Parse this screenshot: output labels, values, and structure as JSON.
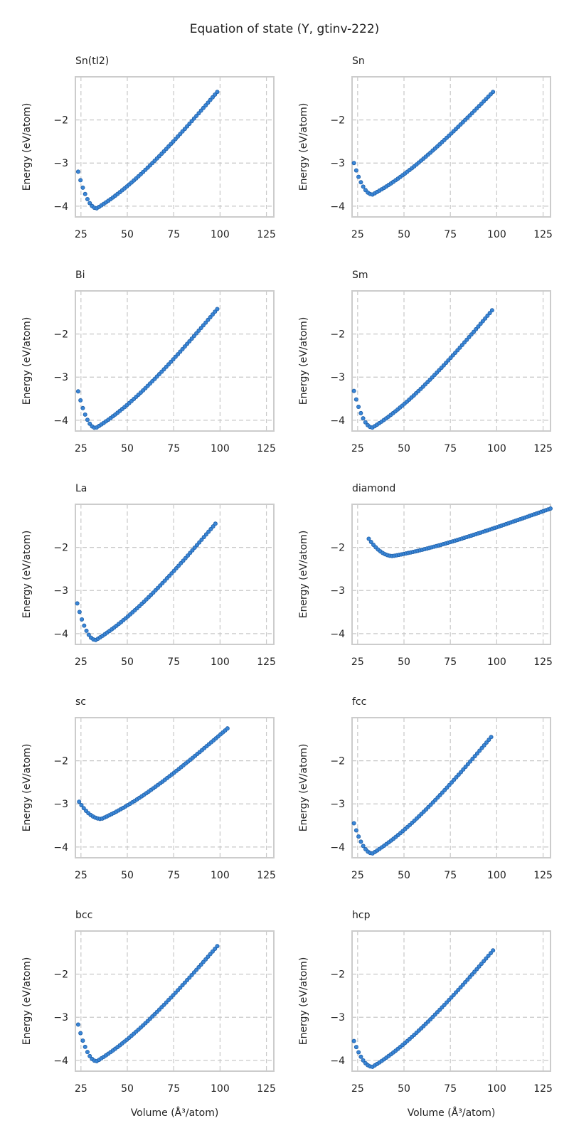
{
  "figure": {
    "title": "Equation of state (Y, gtinv-222)",
    "xlabel": "Volume (Å³/atom)",
    "ylabel": "Energy (eV/atom)"
  },
  "colors": {
    "point_fill": "#3a86d6",
    "point_edge": "#1f5fa8"
  },
  "chart_data": [
    {
      "type": "scatter",
      "title": "Sn(tI2)",
      "xlabel": "",
      "ylabel": "Energy (eV/atom)",
      "xlim": [
        22,
        129
      ],
      "ylim": [
        -4.25,
        -1.0
      ],
      "xticks": [
        25,
        50,
        75,
        100,
        125
      ],
      "yticks": [
        -4,
        -3,
        -2
      ],
      "grid": true,
      "curve": {
        "vmin": 23.5,
        "vmax": 98.5,
        "v0": 33.5,
        "emin": -4.05,
        "eend": -1.35
      }
    },
    {
      "type": "scatter",
      "title": "Sn",
      "xlabel": "",
      "ylabel": "Energy (eV/atom)",
      "xlim": [
        22,
        129
      ],
      "ylim": [
        -4.25,
        -1.0
      ],
      "xticks": [
        25,
        50,
        75,
        100,
        125
      ],
      "yticks": [
        -4,
        -3,
        -2
      ],
      "grid": true,
      "curve": {
        "vmin": 23.0,
        "vmax": 98.0,
        "v0": 33.0,
        "emin": -3.73,
        "eend": -1.35,
        "estart": -3.0
      }
    },
    {
      "type": "scatter",
      "title": "Bi",
      "xlabel": "",
      "ylabel": "Energy (eV/atom)",
      "xlim": [
        22,
        129
      ],
      "ylim": [
        -4.25,
        -1.0
      ],
      "xticks": [
        25,
        50,
        75,
        100,
        125
      ],
      "yticks": [
        -4,
        -3,
        -2
      ],
      "grid": true,
      "curve": {
        "vmin": 23.5,
        "vmax": 98.5,
        "v0": 33.0,
        "emin": -4.18,
        "eend": -1.42
      }
    },
    {
      "type": "scatter",
      "title": "Sm",
      "xlabel": "",
      "ylabel": "Energy (eV/atom)",
      "xlim": [
        22,
        129
      ],
      "ylim": [
        -4.25,
        -1.0
      ],
      "xticks": [
        25,
        50,
        75,
        100,
        125
      ],
      "yticks": [
        -4,
        -3,
        -2
      ],
      "grid": true,
      "curve": {
        "vmin": 23.0,
        "vmax": 97.5,
        "v0": 33.0,
        "emin": -4.17,
        "eend": -1.45
      }
    },
    {
      "type": "scatter",
      "title": "La",
      "xlabel": "",
      "ylabel": "Energy (eV/atom)",
      "xlim": [
        22,
        129
      ],
      "ylim": [
        -4.25,
        -1.0
      ],
      "xticks": [
        25,
        50,
        75,
        100,
        125
      ],
      "yticks": [
        -4,
        -3,
        -2
      ],
      "grid": true,
      "curve": {
        "vmin": 23.0,
        "vmax": 97.5,
        "v0": 33.0,
        "emin": -4.15,
        "eend": -1.45
      }
    },
    {
      "type": "scatter",
      "title": "diamond",
      "xlabel": "",
      "ylabel": "Energy (eV/atom)",
      "xlim": [
        22,
        129
      ],
      "ylim": [
        -4.25,
        -1.0
      ],
      "xticks": [
        25,
        50,
        75,
        100,
        125
      ],
      "yticks": [
        -4,
        -3,
        -2
      ],
      "grid": true,
      "curve": {
        "vmin": 31.0,
        "vmax": 129.0,
        "v0": 44.0,
        "emin": -2.2,
        "eend": -1.1,
        "estart": -1.8
      }
    },
    {
      "type": "scatter",
      "title": "sc",
      "xlabel": "",
      "ylabel": "Energy (eV/atom)",
      "xlim": [
        22,
        129
      ],
      "ylim": [
        -4.25,
        -1.0
      ],
      "xticks": [
        25,
        50,
        75,
        100,
        125
      ],
      "yticks": [
        -4,
        -3,
        -2
      ],
      "grid": true,
      "curve": {
        "vmin": 24.0,
        "vmax": 104.0,
        "v0": 36.0,
        "emin": -3.35,
        "eend": -1.25,
        "estart": -2.95
      }
    },
    {
      "type": "scatter",
      "title": "fcc",
      "xlabel": "",
      "ylabel": "Energy (eV/atom)",
      "xlim": [
        22,
        129
      ],
      "ylim": [
        -4.25,
        -1.0
      ],
      "xticks": [
        25,
        50,
        75,
        100,
        125
      ],
      "yticks": [
        -4,
        -3,
        -2
      ],
      "grid": true,
      "curve": {
        "vmin": 23.0,
        "vmax": 97.0,
        "v0": 33.0,
        "emin": -4.15,
        "eend": -1.45,
        "estart": -3.45
      }
    },
    {
      "type": "scatter",
      "title": "bcc",
      "xlabel": "Volume (Å³/atom)",
      "ylabel": "Energy (eV/atom)",
      "xlim": [
        22,
        129
      ],
      "ylim": [
        -4.25,
        -1.0
      ],
      "xticks": [
        25,
        50,
        75,
        100,
        125
      ],
      "yticks": [
        -4,
        -3,
        -2
      ],
      "grid": true,
      "curve": {
        "vmin": 23.5,
        "vmax": 98.5,
        "v0": 33.5,
        "emin": -4.02,
        "eend": -1.35
      }
    },
    {
      "type": "scatter",
      "title": "hcp",
      "xlabel": "Volume (Å³/atom)",
      "ylabel": "Energy (eV/atom)",
      "xlim": [
        22,
        129
      ],
      "ylim": [
        -4.25,
        -1.0
      ],
      "xticks": [
        25,
        50,
        75,
        100,
        125
      ],
      "yticks": [
        -4,
        -3,
        -2
      ],
      "grid": true,
      "curve": {
        "vmin": 23.0,
        "vmax": 98.0,
        "v0": 33.0,
        "emin": -4.15,
        "eend": -1.45,
        "estart": -3.55
      }
    }
  ]
}
